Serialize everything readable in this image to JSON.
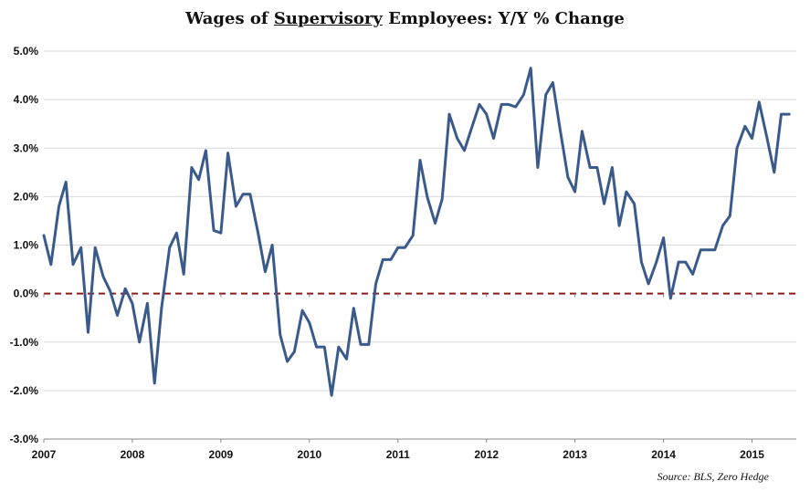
{
  "chart_data": {
    "type": "line",
    "title": {
      "prefix": "Wages of ",
      "emphasis": "Supervisory",
      "suffix": " Employees: Y/Y % Change"
    },
    "xlabel": "",
    "ylabel": "",
    "ylim": [
      -3.0,
      5.0
    ],
    "yticks": [
      5.0,
      4.0,
      3.0,
      2.0,
      1.0,
      0.0,
      -1.0,
      -2.0,
      -3.0
    ],
    "ytick_labels": [
      "5.0%",
      "4.0%",
      "3.0%",
      "2.0%",
      "1.0%",
      "0.0%",
      "-1.0%",
      "-2.0%",
      "-3.0%"
    ],
    "xlim": [
      2007.0,
      2015.5
    ],
    "xticks": [
      2007,
      2008,
      2009,
      2010,
      2011,
      2012,
      2013,
      2014,
      2015
    ],
    "xtick_labels": [
      "2007",
      "2008",
      "2009",
      "2010",
      "2011",
      "2012",
      "2013",
      "2014",
      "2015"
    ],
    "grid": "horizontal",
    "zero_line": {
      "value": 0.0,
      "style": "dashed",
      "color": "#8B1A1A"
    },
    "source": "Source: BLS, Zero Hedge",
    "colors": {
      "series": "#3B5A8C",
      "grid": "#d9d9d9",
      "zero": "#8B1A1A"
    },
    "series": [
      {
        "name": "Supervisory wages Y/Y % change",
        "values": [
          [
            2007.0,
            1.2
          ],
          [
            2007.08,
            0.6
          ],
          [
            2007.17,
            1.8
          ],
          [
            2007.25,
            2.3
          ],
          [
            2007.33,
            0.6
          ],
          [
            2007.42,
            0.95
          ],
          [
            2007.5,
            -0.8
          ],
          [
            2007.58,
            0.95
          ],
          [
            2007.67,
            0.35
          ],
          [
            2007.75,
            0.05
          ],
          [
            2007.83,
            -0.45
          ],
          [
            2007.92,
            0.1
          ],
          [
            2008.0,
            -0.2
          ],
          [
            2008.08,
            -1.0
          ],
          [
            2008.17,
            -0.2
          ],
          [
            2008.25,
            -1.85
          ],
          [
            2008.33,
            -0.3
          ],
          [
            2008.42,
            0.95
          ],
          [
            2008.5,
            1.25
          ],
          [
            2008.58,
            0.4
          ],
          [
            2008.67,
            2.6
          ],
          [
            2008.75,
            2.35
          ],
          [
            2008.83,
            2.95
          ],
          [
            2008.92,
            1.3
          ],
          [
            2009.0,
            1.25
          ],
          [
            2009.08,
            2.9
          ],
          [
            2009.17,
            1.8
          ],
          [
            2009.25,
            2.05
          ],
          [
            2009.33,
            2.05
          ],
          [
            2009.42,
            1.25
          ],
          [
            2009.5,
            0.45
          ],
          [
            2009.58,
            1.0
          ],
          [
            2009.67,
            -0.85
          ],
          [
            2009.75,
            -1.4
          ],
          [
            2009.83,
            -1.2
          ],
          [
            2009.92,
            -0.35
          ],
          [
            2010.0,
            -0.6
          ],
          [
            2010.08,
            -1.1
          ],
          [
            2010.17,
            -1.1
          ],
          [
            2010.25,
            -2.1
          ],
          [
            2010.33,
            -1.1
          ],
          [
            2010.42,
            -1.35
          ],
          [
            2010.5,
            -0.3
          ],
          [
            2010.58,
            -1.05
          ],
          [
            2010.67,
            -1.05
          ],
          [
            2010.75,
            0.2
          ],
          [
            2010.83,
            0.7
          ],
          [
            2010.92,
            0.7
          ],
          [
            2011.0,
            0.95
          ],
          [
            2011.08,
            0.95
          ],
          [
            2011.17,
            1.2
          ],
          [
            2011.25,
            2.75
          ],
          [
            2011.33,
            2.0
          ],
          [
            2011.42,
            1.45
          ],
          [
            2011.5,
            1.95
          ],
          [
            2011.58,
            3.7
          ],
          [
            2011.67,
            3.2
          ],
          [
            2011.75,
            2.95
          ],
          [
            2011.83,
            3.4
          ],
          [
            2011.92,
            3.9
          ],
          [
            2012.0,
            3.7
          ],
          [
            2012.08,
            3.2
          ],
          [
            2012.17,
            3.9
          ],
          [
            2012.25,
            3.9
          ],
          [
            2012.33,
            3.85
          ],
          [
            2012.42,
            4.1
          ],
          [
            2012.5,
            4.65
          ],
          [
            2012.58,
            2.6
          ],
          [
            2012.67,
            4.1
          ],
          [
            2012.75,
            4.35
          ],
          [
            2012.83,
            3.4
          ],
          [
            2012.92,
            2.4
          ],
          [
            2013.0,
            2.1
          ],
          [
            2013.08,
            3.35
          ],
          [
            2013.17,
            2.6
          ],
          [
            2013.25,
            2.6
          ],
          [
            2013.33,
            1.85
          ],
          [
            2013.42,
            2.6
          ],
          [
            2013.5,
            1.4
          ],
          [
            2013.58,
            2.1
          ],
          [
            2013.67,
            1.85
          ],
          [
            2013.75,
            0.65
          ],
          [
            2013.83,
            0.2
          ],
          [
            2013.92,
            0.65
          ],
          [
            2014.0,
            1.15
          ],
          [
            2014.08,
            -0.1
          ],
          [
            2014.17,
            0.65
          ],
          [
            2014.25,
            0.65
          ],
          [
            2014.33,
            0.4
          ],
          [
            2014.42,
            0.9
          ],
          [
            2014.5,
            0.9
          ],
          [
            2014.58,
            0.9
          ],
          [
            2014.67,
            1.4
          ],
          [
            2014.75,
            1.6
          ],
          [
            2014.83,
            3.0
          ],
          [
            2014.92,
            3.45
          ],
          [
            2015.0,
            3.2
          ],
          [
            2015.08,
            3.95
          ],
          [
            2015.17,
            3.2
          ],
          [
            2015.25,
            2.5
          ],
          [
            2015.33,
            3.7
          ],
          [
            2015.42,
            3.7
          ]
        ]
      }
    ]
  }
}
